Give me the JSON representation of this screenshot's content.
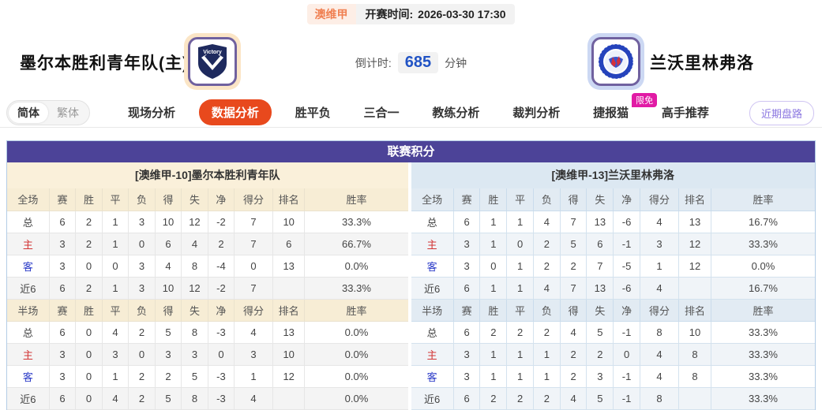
{
  "top_bar": {
    "league": "澳维甲",
    "kickoff_label": "开赛时间:",
    "kickoff_time": "2026-03-30 17:30"
  },
  "header": {
    "home_team": "墨尔本胜利青年队(主)",
    "away_team": "兰沃里林弗洛",
    "countdown_label": "倒计时:",
    "countdown_value": "685",
    "countdown_unit": "分钟"
  },
  "nav": {
    "lang": {
      "simplified": "简体",
      "traditional": "繁体"
    },
    "tabs": [
      {
        "label": "现场分析",
        "active": false
      },
      {
        "label": "数据分析",
        "active": true
      },
      {
        "label": "胜平负",
        "active": false
      },
      {
        "label": "三合一",
        "active": false
      },
      {
        "label": "教练分析",
        "active": false
      },
      {
        "label": "裁判分析",
        "active": false
      },
      {
        "label": "捷报猫",
        "active": false,
        "badge": "限免"
      },
      {
        "label": "高手推荐",
        "active": false
      }
    ],
    "recent_button": "近期盘路"
  },
  "standings": {
    "title": "联赛积分",
    "columns": {
      "full_label": "全场",
      "half_label": "半场",
      "stats": [
        "赛",
        "胜",
        "平",
        "负",
        "得",
        "失",
        "净",
        "得分",
        "排名",
        "胜率"
      ]
    },
    "teams": [
      {
        "name": "[澳维甲-10]墨尔本胜利青年队",
        "theme": "cream",
        "full": [
          {
            "label": "总",
            "values": [
              "6",
              "2",
              "1",
              "3",
              "10",
              "12",
              "-2",
              "7",
              "10",
              "33.3%"
            ]
          },
          {
            "label": "主",
            "values": [
              "3",
              "2",
              "1",
              "0",
              "6",
              "4",
              "2",
              "7",
              "6",
              "66.7%"
            ]
          },
          {
            "label": "客",
            "values": [
              "3",
              "0",
              "0",
              "3",
              "4",
              "8",
              "-4",
              "0",
              "13",
              "0.0%"
            ]
          },
          {
            "label": "近6",
            "values": [
              "6",
              "2",
              "1",
              "3",
              "10",
              "12",
              "-2",
              "7",
              "",
              "33.3%"
            ]
          }
        ],
        "half": [
          {
            "label": "总",
            "values": [
              "6",
              "0",
              "4",
              "2",
              "5",
              "8",
              "-3",
              "4",
              "13",
              "0.0%"
            ]
          },
          {
            "label": "主",
            "values": [
              "3",
              "0",
              "3",
              "0",
              "3",
              "3",
              "0",
              "3",
              "10",
              "0.0%"
            ]
          },
          {
            "label": "客",
            "values": [
              "3",
              "0",
              "1",
              "2",
              "2",
              "5",
              "-3",
              "1",
              "12",
              "0.0%"
            ]
          },
          {
            "label": "近6",
            "values": [
              "6",
              "0",
              "4",
              "2",
              "5",
              "8",
              "-3",
              "4",
              "",
              "0.0%"
            ]
          }
        ]
      },
      {
        "name": "[澳维甲-13]兰沃里林弗洛",
        "theme": "blue",
        "full": [
          {
            "label": "总",
            "values": [
              "6",
              "1",
              "1",
              "4",
              "7",
              "13",
              "-6",
              "4",
              "13",
              "16.7%"
            ]
          },
          {
            "label": "主",
            "values": [
              "3",
              "1",
              "0",
              "2",
              "5",
              "6",
              "-1",
              "3",
              "12",
              "33.3%"
            ]
          },
          {
            "label": "客",
            "values": [
              "3",
              "0",
              "1",
              "2",
              "2",
              "7",
              "-5",
              "1",
              "12",
              "0.0%"
            ]
          },
          {
            "label": "近6",
            "values": [
              "6",
              "1",
              "1",
              "4",
              "7",
              "13",
              "-6",
              "4",
              "",
              "16.7%"
            ]
          }
        ],
        "half": [
          {
            "label": "总",
            "values": [
              "6",
              "2",
              "2",
              "2",
              "4",
              "5",
              "-1",
              "8",
              "10",
              "33.3%"
            ]
          },
          {
            "label": "主",
            "values": [
              "3",
              "1",
              "1",
              "1",
              "2",
              "2",
              "0",
              "4",
              "8",
              "33.3%"
            ]
          },
          {
            "label": "客",
            "values": [
              "3",
              "1",
              "1",
              "1",
              "2",
              "3",
              "-1",
              "4",
              "8",
              "33.3%"
            ]
          },
          {
            "label": "近6",
            "values": [
              "6",
              "2",
              "2",
              "2",
              "4",
              "5",
              "-1",
              "8",
              "",
              "33.3%"
            ]
          }
        ]
      }
    ]
  },
  "colors": {
    "accent_orange": "#e8491d",
    "league_orange": "#f08052",
    "header_purple": "#4c4398",
    "badge_magenta": "#e11ba5",
    "countdown_blue": "#2153c5",
    "cream_section": "#faf0da",
    "blue_section": "#dce8f2",
    "home_row_red": "#d23333",
    "away_row_blue": "#2b3bc8",
    "recent_btn_purple": "#8a75e0"
  }
}
